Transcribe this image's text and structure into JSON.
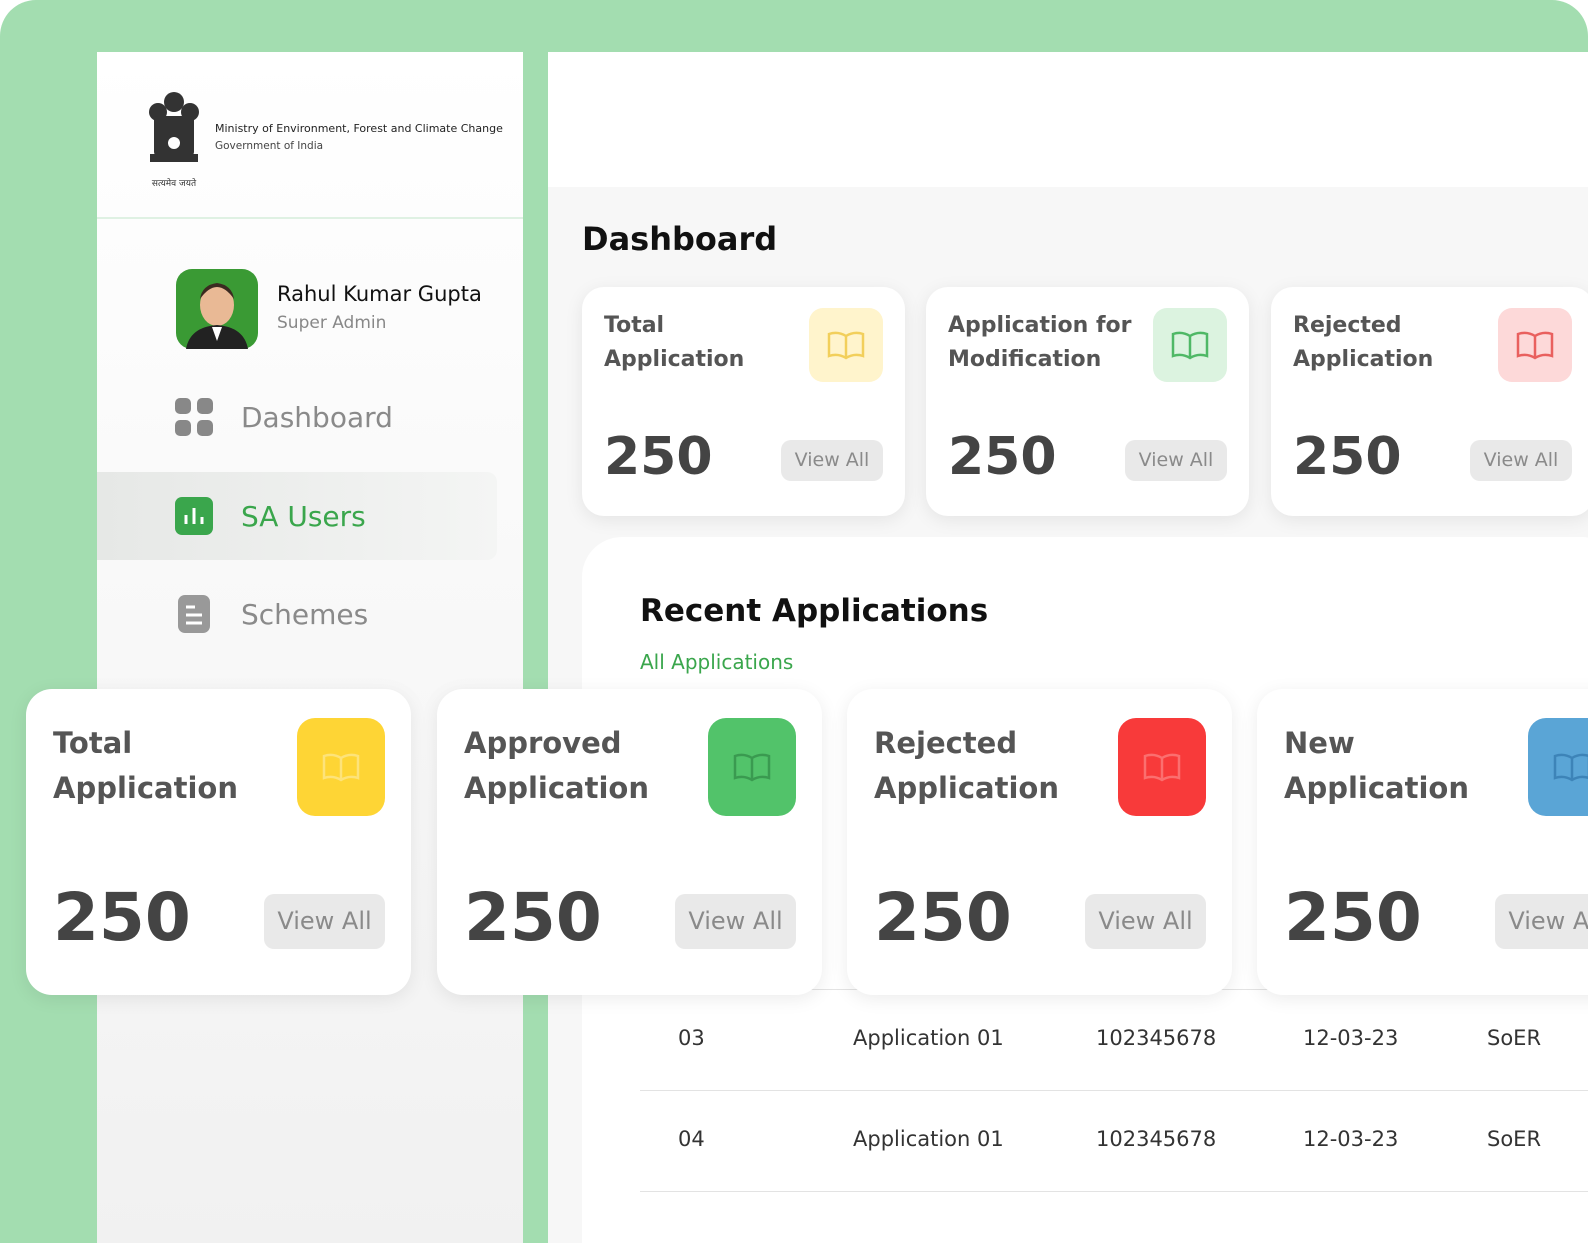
{
  "header": {
    "ministry": "Ministry of Environment, Forest and Climate Change",
    "government": "Government of India",
    "motto": "सत्यमेव जयते"
  },
  "user": {
    "name": "Rahul Kumar Gupta",
    "role": "Super Admin"
  },
  "nav": [
    {
      "label": "Dashboard",
      "active": false
    },
    {
      "label": "SA Users",
      "active": true
    },
    {
      "label": "Schemes",
      "active": false
    }
  ],
  "page_title": "Dashboard",
  "stats": [
    {
      "title": "Total Application",
      "value": 250,
      "action": "View All",
      "color": "#fff4cc",
      "icon": "#f2cf5b"
    },
    {
      "title": "Application for Modification",
      "value": 250,
      "action": "View All",
      "color": "#dcf3e0",
      "icon": "#4fb866"
    },
    {
      "title": "Rejected Application",
      "value": 250,
      "action": "View All",
      "color": "#fdd9d9",
      "icon": "#e9605e"
    }
  ],
  "recent": {
    "title": "Recent Applications",
    "link": "All Applications",
    "rows": [
      [
        "03",
        "Application 01",
        "102345678",
        "12-03-23",
        "SoER"
      ],
      [
        "04",
        "Application 01",
        "102345678",
        "12-03-23",
        "SoER"
      ]
    ]
  },
  "overlay_stats": [
    {
      "title": "Total Application",
      "value": 250,
      "action": "View All",
      "color": "#fed535",
      "icon": "#fde37a"
    },
    {
      "title": "Approved Application",
      "value": 250,
      "action": "View All",
      "color": "#52c36a",
      "icon": "#3a9a50"
    },
    {
      "title": "Rejected Application",
      "value": 250,
      "action": "View All",
      "color": "#f83a3a",
      "icon": "#fb6f6f"
    },
    {
      "title": "New Application",
      "value": 250,
      "action": "View All",
      "color": "#5aa5d6",
      "icon": "#3d84b8"
    }
  ]
}
